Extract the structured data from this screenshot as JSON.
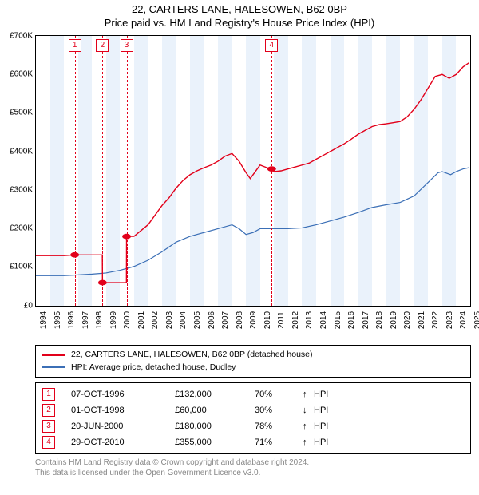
{
  "title": {
    "line1": "22, CARTERS LANE, HALESOWEN, B62 0BP",
    "line2": "Price paid vs. HM Land Registry's House Price Index (HPI)"
  },
  "chart": {
    "type": "line",
    "xlim": [
      1994,
      2025
    ],
    "ylim": [
      0,
      700000
    ],
    "ytick_step": 100000,
    "yticks": [
      "£0",
      "£100K",
      "£200K",
      "£300K",
      "£400K",
      "£500K",
      "£600K",
      "£700K"
    ],
    "xticks": [
      1994,
      1995,
      1996,
      1997,
      1998,
      1999,
      2000,
      2001,
      2002,
      2003,
      2004,
      2005,
      2006,
      2007,
      2008,
      2009,
      2010,
      2011,
      2012,
      2013,
      2014,
      2015,
      2016,
      2017,
      2018,
      2019,
      2020,
      2021,
      2022,
      2023,
      2024,
      2025
    ],
    "band_color": "#eaf2fb",
    "band_years": [
      [
        1995,
        1996
      ],
      [
        1997,
        1998
      ],
      [
        1999,
        2000
      ],
      [
        2001,
        2002
      ],
      [
        2003,
        2004
      ],
      [
        2005,
        2006
      ],
      [
        2007,
        2008
      ],
      [
        2009,
        2010
      ],
      [
        2011,
        2012
      ],
      [
        2013,
        2014
      ],
      [
        2015,
        2016
      ],
      [
        2017,
        2018
      ],
      [
        2019,
        2020
      ],
      [
        2021,
        2022
      ],
      [
        2023,
        2024
      ]
    ],
    "background_color": "#ffffff",
    "axis_color": "#000000",
    "series": {
      "property": {
        "label": "22, CARTERS LANE, HALESOWEN, B62 0BP (detached house)",
        "color": "#e2001a",
        "line_width": 1.4,
        "marker_color": "#e2001a",
        "marker_size": 4,
        "sale_points": [
          {
            "x": 1996.77,
            "y": 132000
          },
          {
            "x": 1998.75,
            "y": 60000
          },
          {
            "x": 2000.47,
            "y": 180000
          },
          {
            "x": 2010.83,
            "y": 355000
          }
        ],
        "path": [
          [
            1994.0,
            130000
          ],
          [
            1995.0,
            130000
          ],
          [
            1996.0,
            130000
          ],
          [
            1996.77,
            132000
          ],
          [
            1997.3,
            132000
          ],
          [
            1998.0,
            132000
          ],
          [
            1998.74,
            132000
          ],
          [
            1998.75,
            60000
          ],
          [
            1999.2,
            60000
          ],
          [
            1999.5,
            60000
          ],
          [
            2000.46,
            60000
          ],
          [
            2000.47,
            180000
          ],
          [
            2000.8,
            180000
          ],
          [
            2001.0,
            180000
          ],
          [
            2001.5,
            195000
          ],
          [
            2002.0,
            210000
          ],
          [
            2002.5,
            235000
          ],
          [
            2003.0,
            260000
          ],
          [
            2003.5,
            280000
          ],
          [
            2004.0,
            305000
          ],
          [
            2004.5,
            325000
          ],
          [
            2005.0,
            340000
          ],
          [
            2005.5,
            350000
          ],
          [
            2006.0,
            358000
          ],
          [
            2006.5,
            365000
          ],
          [
            2007.0,
            375000
          ],
          [
            2007.5,
            388000
          ],
          [
            2008.0,
            395000
          ],
          [
            2008.5,
            375000
          ],
          [
            2009.0,
            345000
          ],
          [
            2009.3,
            330000
          ],
          [
            2009.6,
            345000
          ],
          [
            2010.0,
            365000
          ],
          [
            2010.5,
            358000
          ],
          [
            2010.83,
            355000
          ],
          [
            2011.0,
            348000
          ],
          [
            2011.5,
            350000
          ],
          [
            2012.0,
            355000
          ],
          [
            2012.5,
            360000
          ],
          [
            2013.0,
            365000
          ],
          [
            2013.5,
            370000
          ],
          [
            2014.0,
            380000
          ],
          [
            2014.5,
            390000
          ],
          [
            2015.0,
            400000
          ],
          [
            2015.5,
            410000
          ],
          [
            2016.0,
            420000
          ],
          [
            2016.5,
            432000
          ],
          [
            2017.0,
            445000
          ],
          [
            2017.5,
            455000
          ],
          [
            2018.0,
            465000
          ],
          [
            2018.5,
            470000
          ],
          [
            2019.0,
            472000
          ],
          [
            2019.5,
            475000
          ],
          [
            2020.0,
            478000
          ],
          [
            2020.5,
            490000
          ],
          [
            2021.0,
            510000
          ],
          [
            2021.5,
            535000
          ],
          [
            2022.0,
            565000
          ],
          [
            2022.5,
            595000
          ],
          [
            2023.0,
            600000
          ],
          [
            2023.5,
            590000
          ],
          [
            2024.0,
            600000
          ],
          [
            2024.5,
            620000
          ],
          [
            2024.9,
            630000
          ]
        ]
      },
      "hpi": {
        "label": "HPI: Average price, detached house, Dudley",
        "color": "#3b6fb6",
        "line_width": 1.2,
        "path": [
          [
            1994.0,
            78000
          ],
          [
            1995.0,
            78000
          ],
          [
            1996.0,
            78000
          ],
          [
            1997.0,
            80000
          ],
          [
            1998.0,
            82000
          ],
          [
            1999.0,
            85000
          ],
          [
            2000.0,
            92000
          ],
          [
            2001.0,
            102000
          ],
          [
            2002.0,
            118000
          ],
          [
            2003.0,
            140000
          ],
          [
            2004.0,
            165000
          ],
          [
            2005.0,
            180000
          ],
          [
            2006.0,
            190000
          ],
          [
            2007.0,
            200000
          ],
          [
            2008.0,
            210000
          ],
          [
            2008.5,
            200000
          ],
          [
            2009.0,
            185000
          ],
          [
            2009.5,
            190000
          ],
          [
            2010.0,
            200000
          ],
          [
            2011.0,
            200000
          ],
          [
            2012.0,
            200000
          ],
          [
            2013.0,
            202000
          ],
          [
            2014.0,
            210000
          ],
          [
            2015.0,
            220000
          ],
          [
            2016.0,
            230000
          ],
          [
            2017.0,
            242000
          ],
          [
            2018.0,
            255000
          ],
          [
            2019.0,
            262000
          ],
          [
            2020.0,
            268000
          ],
          [
            2021.0,
            285000
          ],
          [
            2022.0,
            320000
          ],
          [
            2022.7,
            345000
          ],
          [
            2023.0,
            348000
          ],
          [
            2023.6,
            340000
          ],
          [
            2024.0,
            348000
          ],
          [
            2024.5,
            355000
          ],
          [
            2024.9,
            358000
          ]
        ]
      }
    },
    "markers": [
      {
        "n": "1",
        "x": 1996.77,
        "color": "#e2001a"
      },
      {
        "n": "2",
        "x": 1998.75,
        "color": "#e2001a"
      },
      {
        "n": "3",
        "x": 2000.47,
        "color": "#e2001a"
      },
      {
        "n": "4",
        "x": 2010.83,
        "color": "#e2001a"
      }
    ]
  },
  "legend": [
    {
      "color": "#e2001a",
      "label": "22, CARTERS LANE, HALESOWEN, B62 0BP (detached house)"
    },
    {
      "color": "#3b6fb6",
      "label": "HPI: Average price, detached house, Dudley"
    }
  ],
  "events": [
    {
      "n": "1",
      "color": "#e2001a",
      "date": "07-OCT-1996",
      "price": "£132,000",
      "pct": "70%",
      "arrow": "↑",
      "hpi": "HPI"
    },
    {
      "n": "2",
      "color": "#e2001a",
      "date": "01-OCT-1998",
      "price": "£60,000",
      "pct": "30%",
      "arrow": "↓",
      "hpi": "HPI"
    },
    {
      "n": "3",
      "color": "#e2001a",
      "date": "20-JUN-2000",
      "price": "£180,000",
      "pct": "78%",
      "arrow": "↑",
      "hpi": "HPI"
    },
    {
      "n": "4",
      "color": "#e2001a",
      "date": "29-OCT-2010",
      "price": "£355,000",
      "pct": "71%",
      "arrow": "↑",
      "hpi": "HPI"
    }
  ],
  "footer": {
    "line1": "Contains HM Land Registry data © Crown copyright and database right 2024.",
    "line2": "This data is licensed under the Open Government Licence v3.0."
  }
}
